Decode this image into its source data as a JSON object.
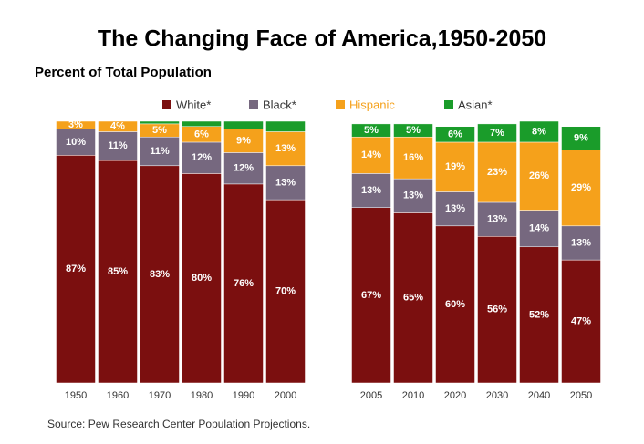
{
  "chart_data": {
    "type": "stacked_bar",
    "title": "The Changing Face of America,1950-2050",
    "subtitle": "Percent of Total Population",
    "source": "Source: Pew Research Center Population Projections.",
    "categories": [
      "1950",
      "1960",
      "1970",
      "1980",
      "1990",
      "2000",
      "2005",
      "2010",
      "2020",
      "2030",
      "2040",
      "2050"
    ],
    "ylim": [
      0,
      100
    ],
    "legend_position": "top",
    "series": [
      {
        "name": "White*",
        "color": "#7b0f0f",
        "legend_text_color": "#333333",
        "values": [
          87,
          85,
          83,
          80,
          76,
          70,
          67,
          65,
          60,
          56,
          52,
          47
        ],
        "value_labels": [
          "87%",
          "85%",
          "83%",
          "80%",
          "76%",
          "70%",
          "67%",
          "65%",
          "60%",
          "56%",
          "52%",
          "47%"
        ]
      },
      {
        "name": "Black*",
        "color": "#76687f",
        "legend_text_color": "#333333",
        "values": [
          10,
          11,
          11,
          12,
          12,
          13,
          13,
          13,
          13,
          13,
          14,
          13
        ],
        "value_labels": [
          "10%",
          "11%",
          "11%",
          "12%",
          "12%",
          "13%",
          "13%",
          "13%",
          "13%",
          "13%",
          "14%",
          "13%"
        ]
      },
      {
        "name": "Hispanic",
        "color": "#f5a11b",
        "legend_text_color": "#f5a11b",
        "values": [
          3,
          4,
          5,
          6,
          9,
          13,
          14,
          16,
          19,
          23,
          26,
          29
        ],
        "value_labels": [
          "3%",
          "4%",
          "5%",
          "6%",
          "9%",
          "13%",
          "14%",
          "16%",
          "19%",
          "23%",
          "26%",
          "29%"
        ]
      },
      {
        "name": "Asian*",
        "color": "#1a9c2a",
        "legend_text_color": "#333333",
        "values": [
          0,
          0,
          1,
          2,
          3,
          4,
          5,
          5,
          6,
          7,
          8,
          9
        ],
        "value_labels": [
          null,
          null,
          null,
          null,
          null,
          null,
          "5%",
          "5%",
          "6%",
          "7%",
          "8%",
          "9%"
        ]
      }
    ]
  }
}
